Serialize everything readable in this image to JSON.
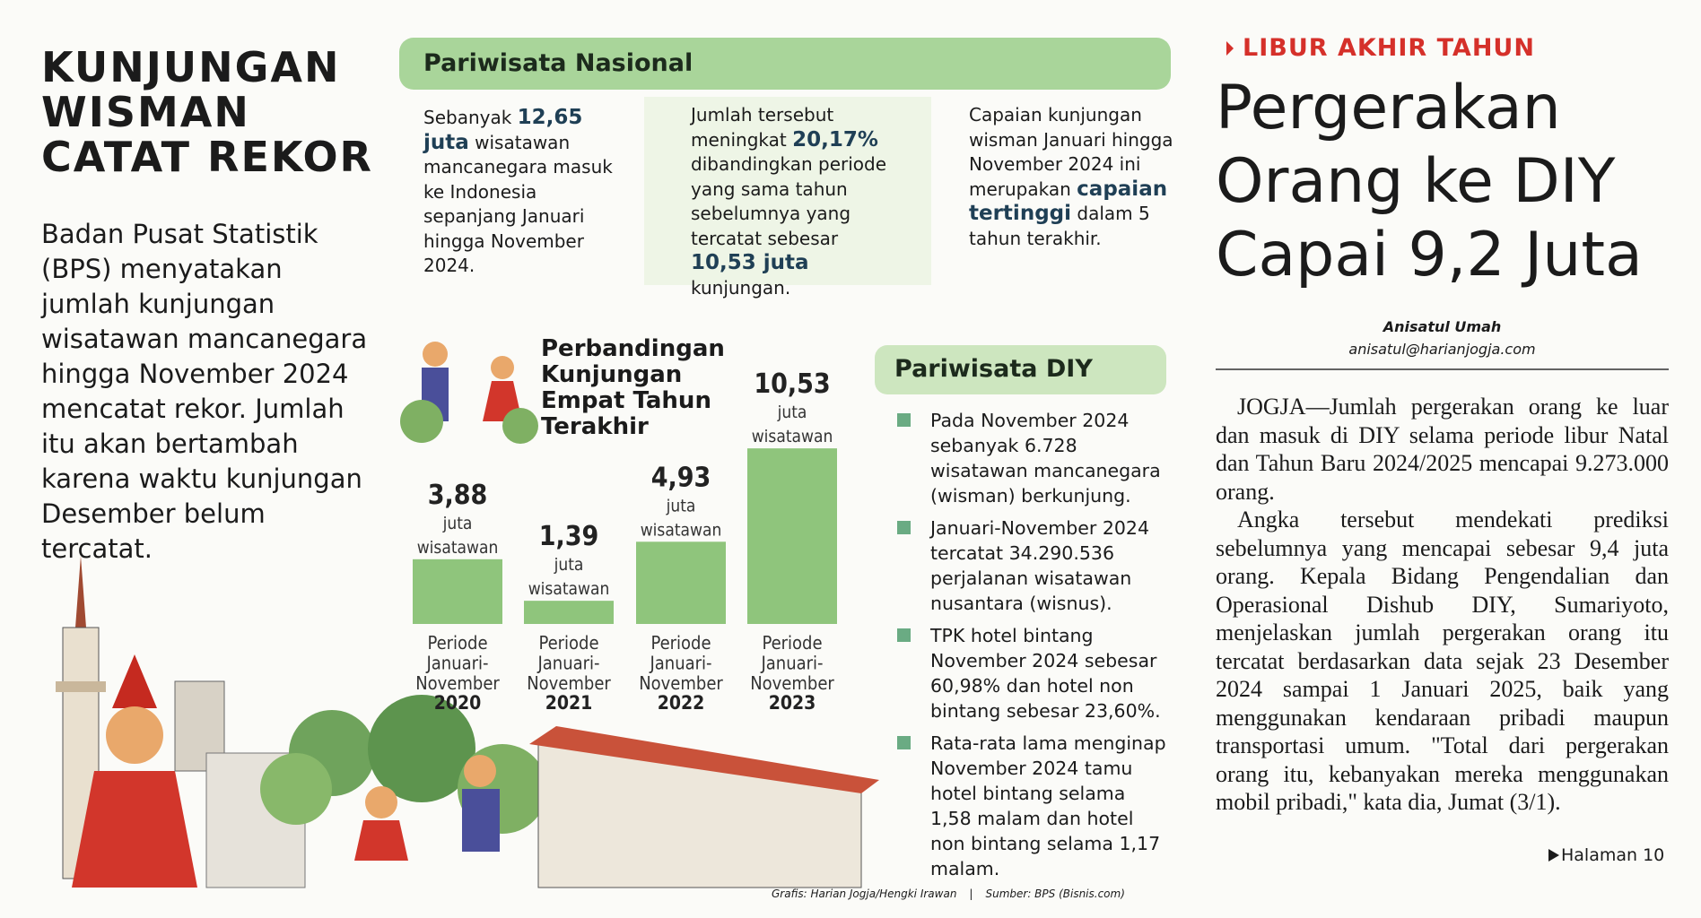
{
  "left": {
    "title_lines": [
      "KUNJUNGAN",
      "WISMAN",
      "CATAT REKOR"
    ],
    "body": "Badan Pusat Statistik (BPS) menyatakan jumlah kunjungan wisatawan mancanegara hingga November 2024 mencatat rekor. Jumlah itu akan bertambah karena waktu kunjungan Desember belum tercatat."
  },
  "national": {
    "header": "Pariwisata Nasional",
    "columns": [
      [
        "Sebanyak",
        "12,65 juta",
        "wisatawan mancanegara masuk ke Indonesia sepanjang Januari hingga November 2024."
      ],
      [
        "Jumlah tersebut meningkat",
        "20,17%",
        "dibandingkan periode yang sama tahun sebelumnya yang tercatat sebesar",
        "10,53 juta",
        "kunjungan."
      ],
      [
        "Capaian kunjungan wisman Januari hingga November 2024 ini merupakan",
        "capaian tertinggi",
        "dalam 5 tahun terakhir."
      ]
    ]
  },
  "chart_data": {
    "type": "bar",
    "title": "Perbandingan Kunjungan Empat Tahun Terakhir",
    "categories": [
      "2020",
      "2021",
      "2022",
      "2023"
    ],
    "category_lines": [
      "Periode",
      "Januari-",
      "November"
    ],
    "values": [
      3.88,
      1.39,
      4.93,
      10.53
    ],
    "value_labels": [
      "3,88",
      "1,39",
      "4,93",
      "10,53"
    ],
    "unit_lines": [
      "juta",
      "wisatawan"
    ],
    "color": "#8fc57c"
  },
  "diy": {
    "header": "Pariwisata DIY",
    "items": [
      "Pada November 2024 sebanyak 6.728 wisatawan mancanegara (wisman) berkunjung.",
      "Januari-November 2024 tercatat 34.290.536 perjalanan wisatawan nusantara (wisnus).",
      "TPK hotel bintang November 2024 sebesar 60,98% dan hotel non bintang sebesar 23,60%.",
      "Rata-rata lama menginap November 2024 tamu hotel bintang selama 1,58 malam dan hotel non bintang selama 1,17 malam."
    ]
  },
  "credits": [
    "Grafis: Harian Jogja/Hengki Irawan",
    "|",
    "Sumber: BPS (Bisnis.com)"
  ],
  "article": {
    "kicker": "LIBUR AKHIR TAHUN",
    "headline": "Pergerakan Orang ke DIY Capai 9,2 Juta",
    "author": "Anisatul Umah",
    "email": "anisatul@harianjogja.com",
    "paragraphs": [
      "JOGJA—Jumlah pergerakan orang ke luar dan masuk di DIY selama periode libur Natal dan Tahun Baru 2024/2025 mencapai 9.273.000 orang.",
      "Angka tersebut mendekati prediksi sebelumnya yang mencapai sebesar 9,4 juta orang. Kepala Bidang Pengendalian dan Operasional Dishub DIY, Sumariyoto, menjelaskan jumlah pergerakan orang itu tercatat berdasarkan data sejak 23 Desember 2024 sampai 1 Januari 2025, baik yang menggunakan kendaraan pribadi maupun transportasi umum. \"Total dari pergerakan orang itu, kebanyakan mereka menggunakan mobil pribadi,\" kata dia, Jumat (3/1)."
    ],
    "continued": "Halaman 10"
  }
}
